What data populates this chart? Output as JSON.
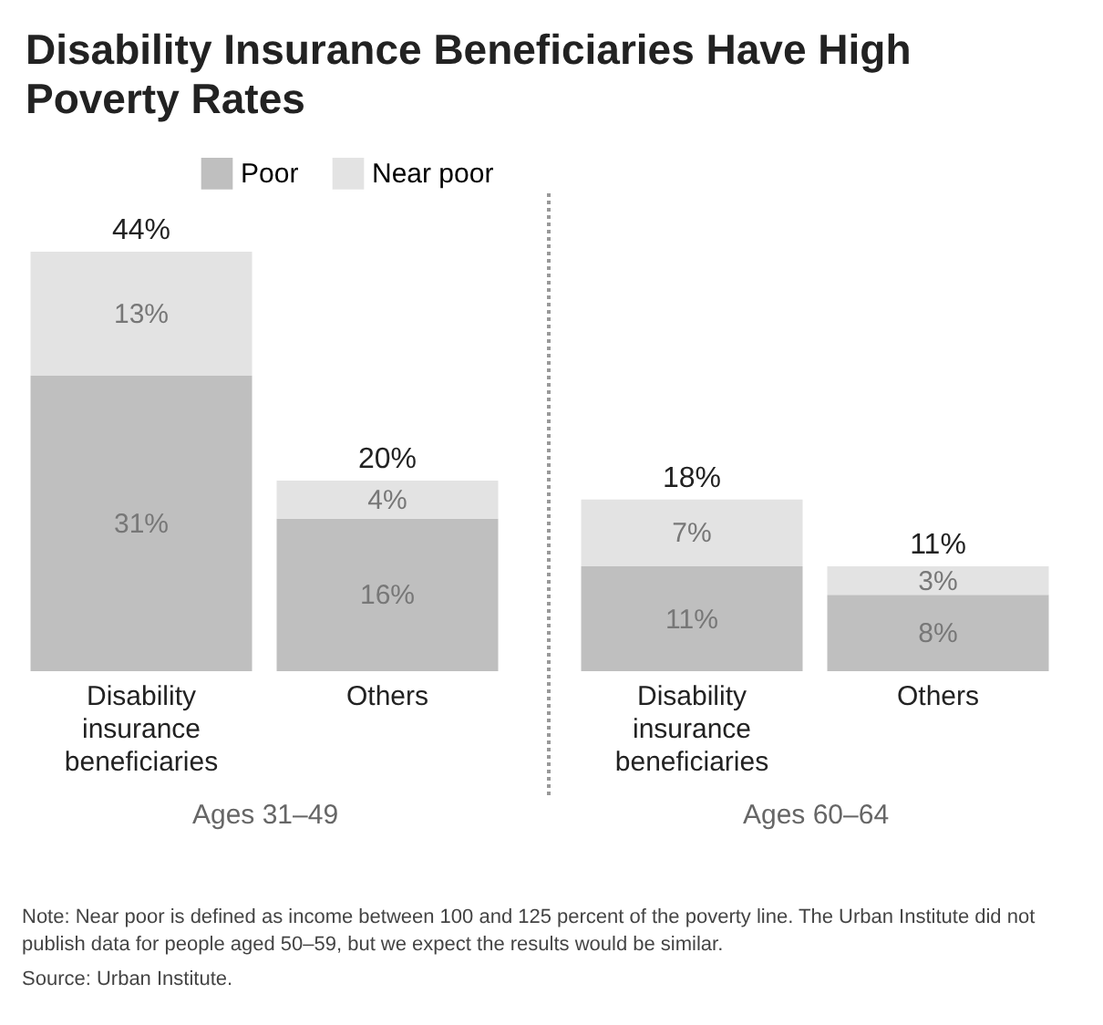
{
  "chart_data": [
    {
      "type": "bar",
      "title": "Disability Insurance Beneficiaries Have High Poverty Rates",
      "xlabel": "Ages 31–49",
      "categories": [
        "Disability insurance beneficiaries",
        "Others"
      ],
      "stacked": true,
      "legend": "top right",
      "series": [
        {
          "name": "Poor",
          "color": "#bfbfbf",
          "values": [
            31,
            16
          ],
          "value_labels": [
            "31%",
            "16%"
          ]
        },
        {
          "name": "Near poor",
          "color": "#e3e3e3",
          "values": [
            13,
            4
          ],
          "value_labels": [
            "13%",
            "4%"
          ]
        }
      ],
      "totals": [
        "44%",
        "20%"
      ]
    },
    {
      "type": "bar",
      "xlabel": "Ages 60–64",
      "categories": [
        "Disability insurance beneficiaries",
        "Others"
      ],
      "stacked": true,
      "series": [
        {
          "color": "#bfbfbf",
          "values": [
            11,
            8
          ],
          "value_labels": [
            "11%",
            "8%"
          ]
        },
        {
          "color": "#e3e3e3",
          "values": [
            7,
            3
          ],
          "value_labels": [
            "7%",
            "3%"
          ]
        }
      ],
      "totals": [
        "18%",
        "11%"
      ],
      "annotations": [
        "Note: Near poor is defined as income between 100 and 125 percent of the poverty line. The Urban Institute did not publish data for people aged 50–59, but we expect the results would be similar.",
        "Source: Urban Institute."
      ]
    }
  ]
}
